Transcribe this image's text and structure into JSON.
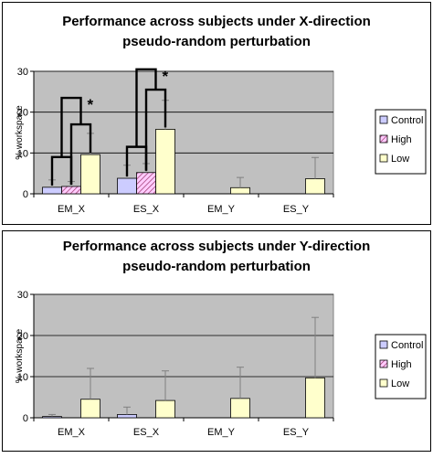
{
  "colors": {
    "control": "#ccccff",
    "high": "#ffccff",
    "high_stripe": "#993366",
    "low": "#ffffcc",
    "plot_bg": "#c0c0c0",
    "outline": "#000000",
    "bracket": "#000000",
    "error_bar": "#808080"
  },
  "chart_data": [
    {
      "type": "bar",
      "title": "Performance across subjects under X-direction",
      "subtitle": "pseudo-random perturbation",
      "ylabel": "% workspace",
      "xlabel": "",
      "ylim": [
        0,
        30
      ],
      "yticks": [
        0,
        10,
        20,
        30
      ],
      "grid": true,
      "legend": "right",
      "categories": [
        "EM_X",
        "ES_X",
        "EM_Y",
        "ES_Y"
      ],
      "series": [
        {
          "name": "Control",
          "values": [
            1.6,
            3.8,
            0,
            0
          ],
          "errors": [
            1.8,
            3.2,
            0,
            0
          ]
        },
        {
          "name": "High",
          "values": [
            1.8,
            5.2,
            0,
            0
          ],
          "errors": [
            1.2,
            2.2,
            0,
            0
          ]
        },
        {
          "name": "Low",
          "values": [
            9.6,
            15.8,
            1.5,
            3.7
          ],
          "errors": [
            5.2,
            7.1,
            2.5,
            5.2
          ]
        }
      ],
      "annotations": [
        {
          "type": "bracket",
          "group": 0,
          "from": 0,
          "to": 1,
          "level": 9
        },
        {
          "type": "bracket",
          "group": 0,
          "from": 1,
          "to": 2,
          "level": 17
        },
        {
          "type": "bracket",
          "group": 0,
          "from": "pair01",
          "to": "pair12",
          "level": 23.5,
          "star": "*"
        },
        {
          "type": "bracket",
          "group": 1,
          "from": 0,
          "to": 1,
          "level": 11.5
        },
        {
          "type": "bracket",
          "group": 1,
          "from": 1,
          "to": 2,
          "level": 25.5
        },
        {
          "type": "bracket",
          "group": 1,
          "from": "pair01",
          "to": "pair12",
          "level": 30.5,
          "star": "*"
        }
      ]
    },
    {
      "type": "bar",
      "title": "Performance across subjects under Y-direction",
      "subtitle": "pseudo-random perturbation",
      "ylabel": "% workspace",
      "xlabel": "",
      "ylim": [
        0,
        30
      ],
      "yticks": [
        0,
        10,
        20,
        30
      ],
      "grid": true,
      "legend": "right",
      "categories": [
        "EM_X",
        "ES_X",
        "EM_Y",
        "ES_Y"
      ],
      "series": [
        {
          "name": "Control",
          "values": [
            0.3,
            0.8,
            0,
            0
          ],
          "errors": [
            0.5,
            1.8,
            0,
            0
          ]
        },
        {
          "name": "High",
          "values": [
            0,
            0,
            0,
            0
          ],
          "errors": [
            0,
            0,
            0,
            0
          ]
        },
        {
          "name": "Low",
          "values": [
            4.5,
            4.2,
            4.7,
            9.7
          ],
          "errors": [
            7.5,
            7.2,
            7.6,
            14.7
          ]
        }
      ],
      "annotations": []
    }
  ]
}
